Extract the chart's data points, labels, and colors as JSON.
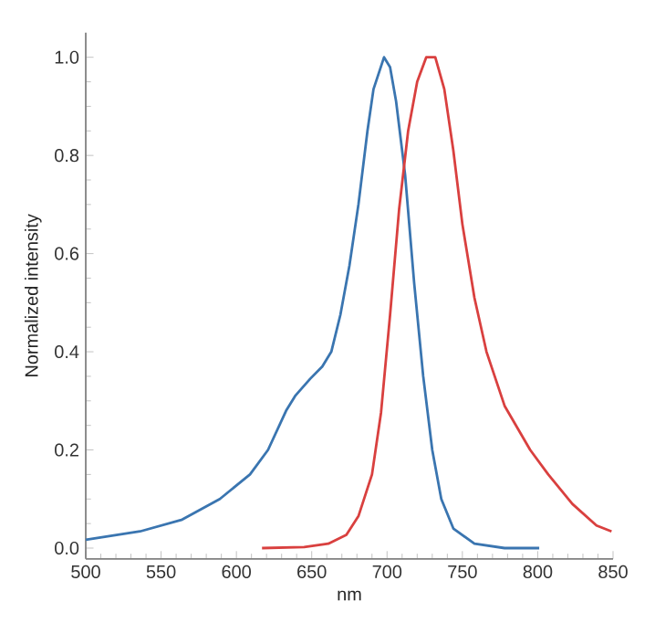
{
  "chart_data": {
    "type": "line",
    "xlabel": "nm",
    "ylabel": "Normalized intensity",
    "xlim": [
      500,
      850
    ],
    "ylim": [
      -0.022,
      1.05
    ],
    "xticks": [
      500,
      550,
      600,
      650,
      700,
      750,
      800,
      850
    ],
    "yticks": [
      {
        "value": 0,
        "label": "0.0"
      },
      0.2,
      0.4,
      0.6,
      0.8,
      {
        "value": 1,
        "label": "1.0"
      }
    ],
    "marker": "none",
    "line_style": "solid",
    "series": [
      {
        "color": "#3a75b0",
        "x": [
          500,
          536,
          564,
          589,
          609,
          621,
          633,
          639,
          649,
          657,
          663,
          669,
          675,
          681,
          687,
          691,
          698,
          702,
          706,
          712,
          718,
          724,
          730,
          736,
          744,
          758,
          778,
          801
        ],
        "values": [
          0.017,
          0.034,
          0.058,
          0.1,
          0.15,
          0.2,
          0.28,
          0.31,
          0.345,
          0.37,
          0.4,
          0.475,
          0.575,
          0.7,
          0.85,
          0.935,
          1.0,
          0.98,
          0.91,
          0.76,
          0.54,
          0.35,
          0.2,
          0.1,
          0.04,
          0.009,
          0,
          0
        ]
      },
      {
        "color": "#d9403f",
        "x": [
          617,
          645,
          661,
          673,
          681,
          690,
          696,
          702,
          708,
          714,
          720,
          726,
          732,
          738,
          744,
          750,
          758,
          766,
          778,
          795,
          807,
          823,
          839,
          849
        ],
        "values": [
          0,
          0.002,
          0.009,
          0.027,
          0.065,
          0.15,
          0.276,
          0.475,
          0.69,
          0.85,
          0.95,
          1.0,
          1.0,
          0.935,
          0.81,
          0.66,
          0.51,
          0.4,
          0.29,
          0.2,
          0.15,
          0.09,
          0.046,
          0.034
        ]
      }
    ]
  }
}
